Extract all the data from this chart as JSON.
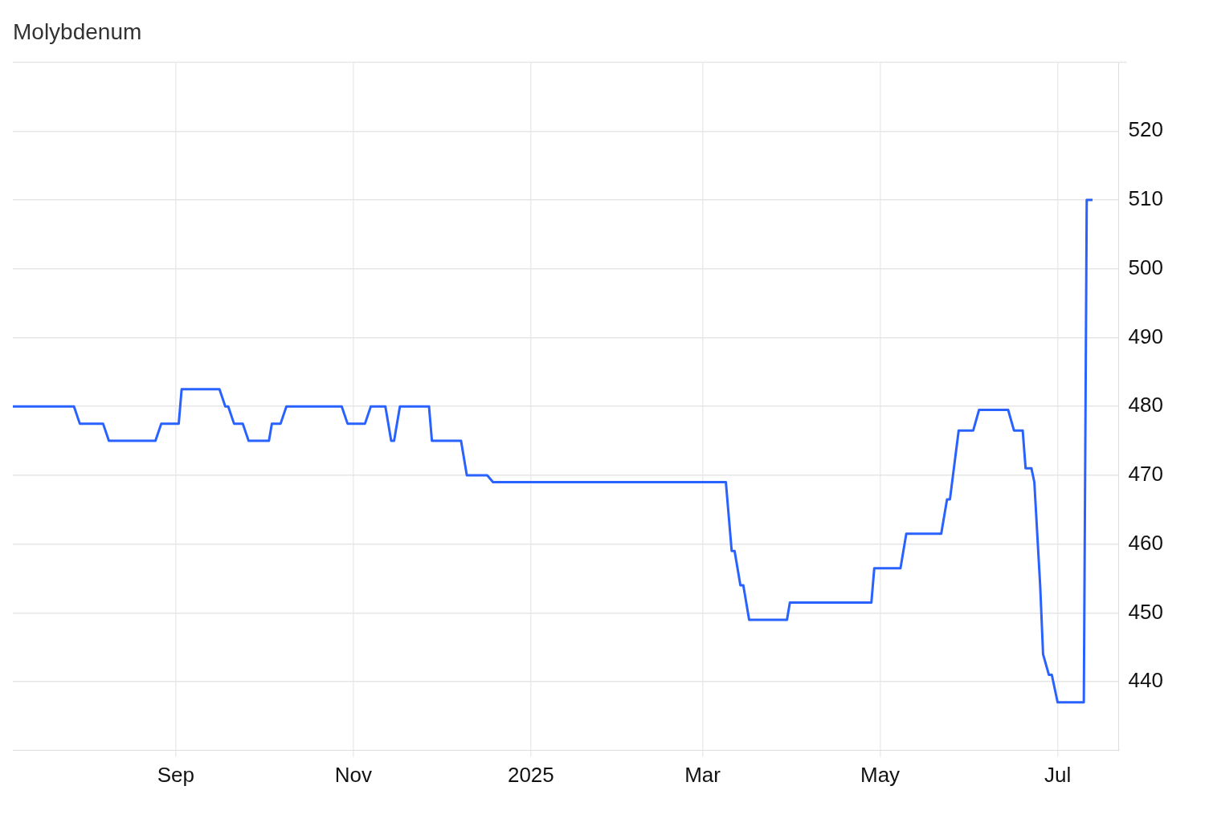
{
  "chart_data": {
    "type": "line",
    "title": "Molybdenum",
    "x": [
      "2024-07-07",
      "2024-07-28",
      "2024-07-30",
      "2024-08-07",
      "2024-08-09",
      "2024-08-25",
      "2024-08-27",
      "2024-09-02",
      "2024-09-03",
      "2024-09-16",
      "2024-09-18",
      "2024-09-19",
      "2024-09-21",
      "2024-09-24",
      "2024-09-26",
      "2024-10-03",
      "2024-10-04",
      "2024-10-07",
      "2024-10-09",
      "2024-10-28",
      "2024-10-30",
      "2024-11-05",
      "2024-11-07",
      "2024-11-12",
      "2024-11-14",
      "2024-11-15",
      "2024-11-17",
      "2024-11-27",
      "2024-11-28",
      "2024-12-08",
      "2024-12-10",
      "2024-12-17",
      "2024-12-19",
      "2025-03-09",
      "2025-03-11",
      "2025-03-12",
      "2025-03-14",
      "2025-03-15",
      "2025-03-17",
      "2025-03-30",
      "2025-03-31",
      "2025-04-28",
      "2025-04-29",
      "2025-05-08",
      "2025-05-10",
      "2025-05-22",
      "2025-05-24",
      "2025-05-25",
      "2025-05-28",
      "2025-06-02",
      "2025-06-04",
      "2025-06-14",
      "2025-06-16",
      "2025-06-19",
      "2025-06-20",
      "2025-06-22",
      "2025-06-23",
      "2025-06-25",
      "2025-06-26",
      "2025-06-28",
      "2025-06-29",
      "2025-07-01",
      "2025-07-10",
      "2025-07-11",
      "2025-07-13"
    ],
    "series": [
      {
        "color": "#2962ff",
        "values": [
          480,
          480,
          477.5,
          477.5,
          475,
          475,
          477.5,
          477.5,
          482.5,
          482.5,
          480,
          480,
          477.5,
          477.5,
          475,
          475,
          477.5,
          477.5,
          480,
          480,
          477.5,
          477.5,
          480,
          480,
          475,
          475,
          480,
          480,
          475,
          475,
          470,
          470,
          469,
          469,
          459,
          459,
          454,
          454,
          449,
          449,
          451.5,
          451.5,
          456.5,
          456.5,
          461.5,
          461.5,
          466.5,
          466.5,
          476.5,
          476.5,
          479.5,
          479.5,
          476.5,
          476.5,
          471,
          471,
          469,
          454,
          444,
          441,
          441,
          437,
          437,
          510,
          510
        ]
      }
    ],
    "xlim": [
      "2024-07-07",
      "2025-07-22"
    ],
    "xticks": [
      {
        "value": "2024-09-01",
        "label": "Sep"
      },
      {
        "value": "2024-11-01",
        "label": "Nov"
      },
      {
        "value": "2025-01-01",
        "label": "2025"
      },
      {
        "value": "2025-03-01",
        "label": "Mar"
      },
      {
        "value": "2025-05-01",
        "label": "May"
      },
      {
        "value": "2025-07-01",
        "label": "Jul"
      }
    ],
    "ylim": [
      430,
      530
    ],
    "yticks": [
      440,
      450,
      460,
      470,
      480,
      490,
      500,
      510,
      520
    ],
    "grid": true,
    "legend": false,
    "marker": "none",
    "line_style": "solid"
  }
}
